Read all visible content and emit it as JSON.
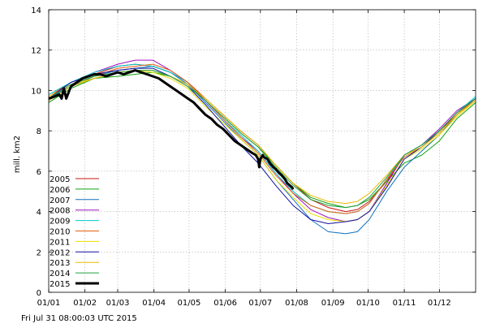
{
  "chart_data": {
    "type": "line",
    "title": "",
    "xlabel": "",
    "ylabel": "mill. km2",
    "footer": "Fri Jul 31 08:00:03 UTC 2015",
    "x_unit": "day of year",
    "xlim": [
      1,
      366
    ],
    "ylim": [
      0,
      14
    ],
    "x_ticks": [
      {
        "day": 1,
        "label": "01/01"
      },
      {
        "day": 32,
        "label": "01/02"
      },
      {
        "day": 60,
        "label": "01/03"
      },
      {
        "day": 91,
        "label": "01/04"
      },
      {
        "day": 121,
        "label": "01/05"
      },
      {
        "day": 152,
        "label": "01/06"
      },
      {
        "day": 182,
        "label": "01/07"
      },
      {
        "day": 213,
        "label": "01/08"
      },
      {
        "day": 244,
        "label": "01/09"
      },
      {
        "day": 274,
        "label": "01/10"
      },
      {
        "day": 305,
        "label": "01/11"
      },
      {
        "day": 335,
        "label": "01/12"
      }
    ],
    "y_ticks": [
      0,
      2,
      4,
      6,
      8,
      10,
      12,
      14
    ],
    "grid": true,
    "legend_position": "lower-left",
    "series": [
      {
        "name": "2005",
        "color": "#d01010",
        "x": [
          1,
          20,
          40,
          60,
          75,
          90,
          105,
          120,
          135,
          150,
          165,
          180,
          195,
          210,
          225,
          240,
          255,
          265,
          275,
          290,
          305,
          320,
          335,
          350,
          366
        ],
        "y": [
          9.7,
          10.4,
          10.8,
          11.2,
          11.3,
          11.2,
          10.9,
          10.4,
          9.6,
          8.8,
          8.0,
          7.3,
          6.3,
          5.4,
          4.6,
          4.2,
          4.0,
          4.1,
          4.5,
          5.5,
          6.8,
          7.3,
          8.0,
          8.8,
          9.6
        ]
      },
      {
        "name": "2006",
        "color": "#10a010",
        "x": [
          1,
          20,
          40,
          60,
          75,
          90,
          105,
          120,
          135,
          150,
          165,
          180,
          195,
          210,
          225,
          240,
          255,
          265,
          275,
          290,
          305,
          320,
          335,
          350,
          366
        ],
        "y": [
          9.4,
          10.1,
          10.6,
          10.7,
          10.8,
          10.9,
          10.7,
          10.3,
          9.5,
          8.7,
          7.9,
          7.2,
          6.3,
          5.4,
          4.7,
          4.4,
          4.2,
          4.3,
          4.6,
          5.5,
          6.4,
          6.8,
          7.5,
          8.6,
          9.4
        ]
      },
      {
        "name": "2007",
        "color": "#1070c0",
        "x": [
          1,
          20,
          40,
          60,
          75,
          90,
          105,
          120,
          135,
          150,
          165,
          180,
          195,
          210,
          225,
          240,
          255,
          265,
          275,
          290,
          305,
          320,
          335,
          350,
          366
        ],
        "y": [
          9.6,
          10.2,
          10.7,
          11.0,
          11.1,
          11.2,
          10.9,
          10.3,
          9.4,
          8.5,
          7.6,
          6.8,
          5.6,
          4.6,
          3.6,
          3.0,
          2.9,
          3.0,
          3.6,
          5.0,
          6.2,
          7.0,
          7.8,
          8.8,
          9.6
        ]
      },
      {
        "name": "2008",
        "color": "#a010c0",
        "x": [
          1,
          20,
          40,
          60,
          75,
          90,
          105,
          120,
          135,
          150,
          165,
          180,
          195,
          210,
          225,
          240,
          255,
          265,
          275,
          290,
          305,
          320,
          335,
          350,
          366
        ],
        "y": [
          9.6,
          10.4,
          10.9,
          11.3,
          11.5,
          11.5,
          11.0,
          10.4,
          9.5,
          8.6,
          7.7,
          7.0,
          5.9,
          4.9,
          4.1,
          3.7,
          3.5,
          3.6,
          4.0,
          5.4,
          6.8,
          7.3,
          8.1,
          9.0,
          9.6
        ]
      },
      {
        "name": "2009",
        "color": "#00c8c8",
        "x": [
          1,
          20,
          40,
          60,
          75,
          90,
          105,
          120,
          135,
          150,
          165,
          180,
          195,
          210,
          225,
          240,
          255,
          265,
          275,
          290,
          305,
          320,
          335,
          350,
          366
        ],
        "y": [
          9.8,
          10.4,
          10.9,
          11.2,
          11.3,
          11.2,
          10.9,
          10.4,
          9.5,
          8.6,
          7.8,
          7.0,
          5.9,
          5.0,
          4.3,
          4.0,
          3.9,
          4.0,
          4.4,
          5.6,
          6.8,
          7.3,
          8.0,
          8.9,
          9.7
        ]
      },
      {
        "name": "2010",
        "color": "#e06010",
        "x": [
          1,
          20,
          40,
          60,
          75,
          90,
          105,
          120,
          135,
          150,
          165,
          180,
          195,
          210,
          225,
          240,
          255,
          265,
          275,
          290,
          305,
          320,
          335,
          350,
          366
        ],
        "y": [
          9.6,
          10.3,
          10.7,
          11.1,
          11.2,
          11.3,
          11.0,
          10.4,
          9.5,
          8.6,
          7.7,
          6.9,
          5.8,
          4.9,
          4.3,
          4.0,
          3.9,
          4.0,
          4.4,
          5.6,
          6.7,
          7.2,
          7.9,
          8.8,
          9.6
        ]
      },
      {
        "name": "2011",
        "color": "#e8e000",
        "x": [
          1,
          20,
          40,
          60,
          75,
          90,
          105,
          120,
          135,
          150,
          165,
          180,
          195,
          210,
          225,
          240,
          255,
          265,
          275,
          290,
          305,
          320,
          335,
          350,
          366
        ],
        "y": [
          9.7,
          10.3,
          10.6,
          10.9,
          11.0,
          10.9,
          10.6,
          10.1,
          9.2,
          8.4,
          7.6,
          6.8,
          5.6,
          4.7,
          3.9,
          3.6,
          3.5,
          3.6,
          4.0,
          5.3,
          6.6,
          7.1,
          7.8,
          8.7,
          9.5
        ]
      },
      {
        "name": "2012",
        "color": "#1010a0",
        "x": [
          1,
          20,
          40,
          60,
          75,
          90,
          105,
          120,
          135,
          150,
          165,
          180,
          195,
          210,
          225,
          240,
          255,
          265,
          275,
          290,
          305,
          320,
          335,
          350,
          366
        ],
        "y": [
          9.6,
          10.4,
          10.8,
          11.0,
          11.1,
          11.1,
          10.7,
          10.2,
          9.3,
          8.3,
          7.3,
          6.4,
          5.3,
          4.3,
          3.6,
          3.4,
          3.5,
          3.6,
          4.0,
          5.2,
          6.6,
          7.2,
          8.0,
          8.9,
          9.6
        ]
      },
      {
        "name": "2013",
        "color": "#e8b800",
        "x": [
          1,
          20,
          40,
          60,
          75,
          90,
          105,
          120,
          135,
          150,
          165,
          180,
          195,
          210,
          225,
          240,
          255,
          265,
          275,
          290,
          305,
          320,
          335,
          350,
          366
        ],
        "y": [
          9.5,
          10.2,
          10.6,
          10.9,
          11.0,
          11.0,
          10.7,
          10.3,
          9.6,
          8.8,
          8.0,
          7.3,
          6.3,
          5.4,
          4.8,
          4.5,
          4.4,
          4.5,
          4.9,
          5.8,
          6.8,
          7.2,
          7.9,
          8.8,
          9.5
        ]
      },
      {
        "name": "2014",
        "color": "#20a040",
        "x": [
          1,
          20,
          40,
          60,
          75,
          90,
          105,
          120,
          135,
          150,
          165,
          180,
          195,
          210,
          225,
          240,
          255,
          265,
          275,
          290,
          305,
          320,
          335,
          350,
          366
        ],
        "y": [
          9.6,
          10.3,
          10.7,
          10.9,
          11.0,
          11.0,
          10.7,
          10.2,
          9.5,
          8.7,
          7.9,
          7.2,
          6.2,
          5.3,
          4.6,
          4.3,
          4.2,
          4.3,
          4.7,
          5.7,
          6.8,
          7.3,
          8.0,
          8.9,
          9.6
        ]
      },
      {
        "name": "2015",
        "color": "#000000",
        "bold": true,
        "x": [
          1,
          6,
          10,
          12,
          14,
          16,
          20,
          25,
          30,
          35,
          40,
          45,
          50,
          55,
          60,
          65,
          70,
          75,
          80,
          85,
          90,
          95,
          100,
          105,
          110,
          115,
          120,
          125,
          130,
          135,
          140,
          145,
          150,
          155,
          160,
          165,
          170,
          175,
          178,
          180,
          181,
          182,
          184,
          185,
          188,
          190,
          193,
          195,
          198,
          200,
          203,
          205,
          207,
          209,
          210
        ],
        "y": [
          9.6,
          9.7,
          9.8,
          9.6,
          10.1,
          9.6,
          10.2,
          10.4,
          10.6,
          10.7,
          10.8,
          10.8,
          10.7,
          10.8,
          10.9,
          10.8,
          10.9,
          11.0,
          10.9,
          10.8,
          10.7,
          10.6,
          10.4,
          10.2,
          10.0,
          9.8,
          9.6,
          9.4,
          9.1,
          8.8,
          8.6,
          8.3,
          8.1,
          7.8,
          7.5,
          7.3,
          7.1,
          6.9,
          6.8,
          6.6,
          6.2,
          6.6,
          6.8,
          6.7,
          6.6,
          6.4,
          6.2,
          6.1,
          5.9,
          5.8,
          5.6,
          5.4,
          5.3,
          5.2,
          5.1
        ]
      }
    ]
  }
}
